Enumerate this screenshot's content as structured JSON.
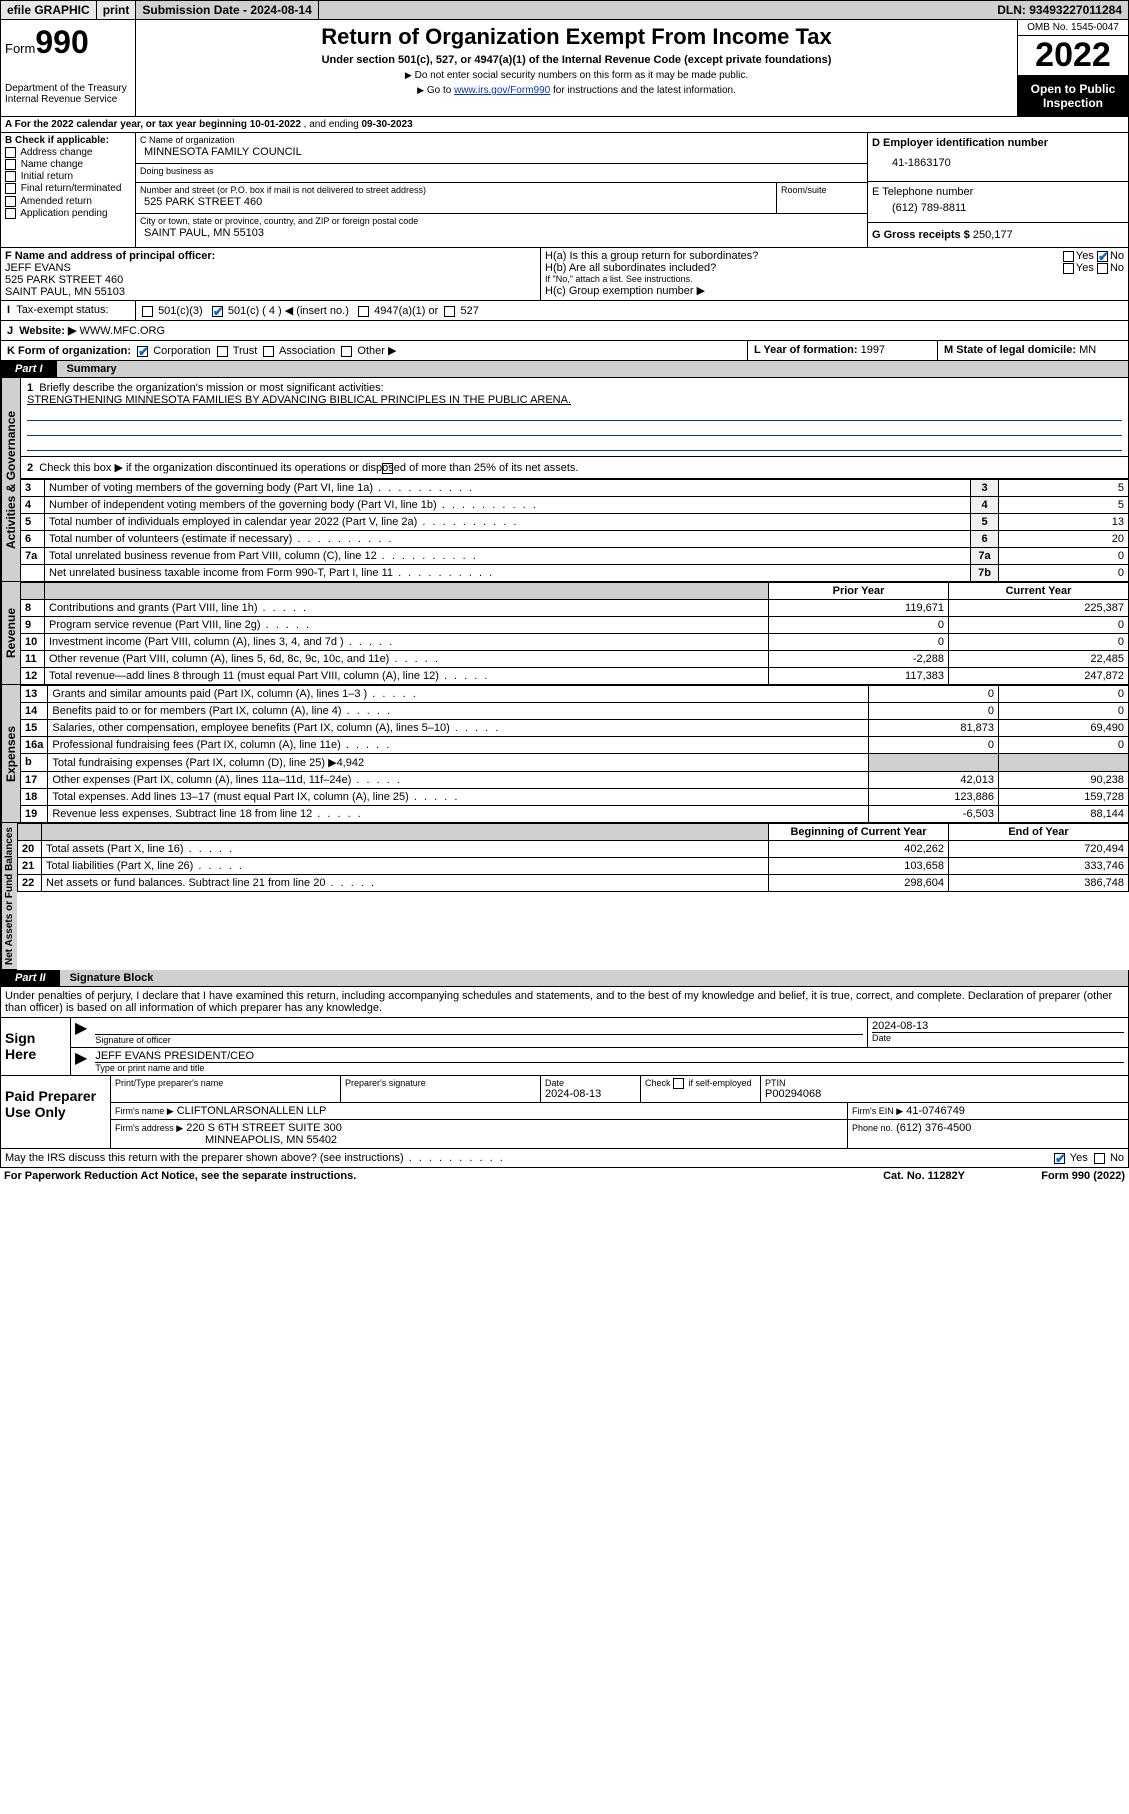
{
  "topbar": {
    "efile": "efile GRAPHIC",
    "print": "print",
    "subdate_label": "Submission Date - ",
    "subdate": "2024-08-14",
    "dln_label": "DLN: ",
    "dln": "93493227011284"
  },
  "header": {
    "form_word": "Form",
    "form_num": "990",
    "dept": "Department of the Treasury",
    "irs": "Internal Revenue Service",
    "title": "Return of Organization Exempt From Income Tax",
    "subtitle": "Under section 501(c), 527, or 4947(a)(1) of the Internal Revenue Code (except private foundations)",
    "note1": "Do not enter social security numbers on this form as it may be made public.",
    "note2_a": "Go to ",
    "note2_link": "www.irs.gov/Form990",
    "note2_b": " for instructions and the latest information.",
    "omb": "OMB No. 1545-0047",
    "year": "2022",
    "open1": "Open to Public",
    "open2": "Inspection"
  },
  "period": {
    "a_label": "A For the 2022 calendar year, or tax year beginning ",
    "begin": "10-01-2022",
    "mid": " , and ending ",
    "end": "09-30-2023"
  },
  "colB": {
    "label": "B Check if applicable:",
    "opts": [
      "Address change",
      "Name change",
      "Initial return",
      "Final return/terminated",
      "Amended return",
      "Application pending"
    ]
  },
  "colC": {
    "name_label": "C Name of organization",
    "name": "MINNESOTA FAMILY COUNCIL",
    "dba_label": "Doing business as",
    "dba": "",
    "addr_label": "Number and street (or P.O. box if mail is not delivered to street address)",
    "room_label": "Room/suite",
    "addr": "525 PARK STREET 460",
    "city_label": "City or town, state or province, country, and ZIP or foreign postal code",
    "city": "SAINT PAUL, MN  55103"
  },
  "colD": {
    "label": "D Employer identification number",
    "val": "41-1863170"
  },
  "colE": {
    "label": "E Telephone number",
    "val": "(612) 789-8811"
  },
  "colG": {
    "label": "G Gross receipts $",
    "val": "250,177"
  },
  "colF": {
    "label": "F Name and address of principal officer:",
    "name": "JEFF EVANS",
    "addr1": "525 PARK STREET 460",
    "addr2": "SAINT PAUL, MN  55103"
  },
  "colH": {
    "ha": "H(a)  Is this a group return for subordinates?",
    "hb": "H(b)  Are all subordinates included?",
    "hb_note": "If \"No,\" attach a list. See instructions.",
    "hc": "H(c)  Group exemption number ▶",
    "yes": "Yes",
    "no": "No"
  },
  "lineI": {
    "label": "Tax-exempt status:",
    "o1": "501(c)(3)",
    "o2": "501(c) ( 4 ) ◀ (insert no.)",
    "o3": "4947(a)(1) or",
    "o4": "527"
  },
  "lineJ": {
    "label": "Website: ▶",
    "val": "WWW.MFC.ORG"
  },
  "lineK": {
    "label": "K Form of organization:",
    "o1": "Corporation",
    "o2": "Trust",
    "o3": "Association",
    "o4": "Other ▶"
  },
  "lineL": {
    "label": "L Year of formation:",
    "val": "1997"
  },
  "lineM": {
    "label": "M State of legal domicile:",
    "val": "MN"
  },
  "part1": {
    "num": "Part I",
    "name": "Summary"
  },
  "vtabs": {
    "ag": "Activities & Governance",
    "rev": "Revenue",
    "exp": "Expenses",
    "na": "Net Assets or\nFund Balances"
  },
  "p1": {
    "l1a": "Briefly describe the organization's mission or most significant activities:",
    "l1b": "STRENGTHENING MINNESOTA FAMILIES BY ADVANCING BIBLICAL PRINCIPLES IN THE PUBLIC ARENA.",
    "l2": "Check this box ▶       if the organization discontinued its operations or disposed of more than 25% of its net assets.",
    "rows_gov": [
      {
        "n": "3",
        "d": "Number of voting members of the governing body (Part VI, line 1a)",
        "b": "3",
        "v": "5"
      },
      {
        "n": "4",
        "d": "Number of independent voting members of the governing body (Part VI, line 1b)",
        "b": "4",
        "v": "5"
      },
      {
        "n": "5",
        "d": "Total number of individuals employed in calendar year 2022 (Part V, line 2a)",
        "b": "5",
        "v": "13"
      },
      {
        "n": "6",
        "d": "Total number of volunteers (estimate if necessary)",
        "b": "6",
        "v": "20"
      },
      {
        "n": "7a",
        "d": "Total unrelated business revenue from Part VIII, column (C), line 12",
        "b": "7a",
        "v": "0"
      },
      {
        "n": "",
        "d": "Net unrelated business taxable income from Form 990-T, Part I, line 11",
        "b": "7b",
        "v": "0"
      }
    ],
    "hdr_prior": "Prior Year",
    "hdr_curr": "Current Year",
    "rows_rev": [
      {
        "n": "8",
        "d": "Contributions and grants (Part VIII, line 1h)",
        "p": "119,671",
        "c": "225,387"
      },
      {
        "n": "9",
        "d": "Program service revenue (Part VIII, line 2g)",
        "p": "0",
        "c": "0"
      },
      {
        "n": "10",
        "d": "Investment income (Part VIII, column (A), lines 3, 4, and 7d )",
        "p": "0",
        "c": "0"
      },
      {
        "n": "11",
        "d": "Other revenue (Part VIII, column (A), lines 5, 6d, 8c, 9c, 10c, and 11e)",
        "p": "-2,288",
        "c": "22,485"
      },
      {
        "n": "12",
        "d": "Total revenue—add lines 8 through 11 (must equal Part VIII, column (A), line 12)",
        "p": "117,383",
        "c": "247,872"
      }
    ],
    "rows_exp": [
      {
        "n": "13",
        "d": "Grants and similar amounts paid (Part IX, column (A), lines 1–3 )",
        "p": "0",
        "c": "0"
      },
      {
        "n": "14",
        "d": "Benefits paid to or for members (Part IX, column (A), line 4)",
        "p": "0",
        "c": "0"
      },
      {
        "n": "15",
        "d": "Salaries, other compensation, employee benefits (Part IX, column (A), lines 5–10)",
        "p": "81,873",
        "c": "69,490"
      },
      {
        "n": "16a",
        "d": "Professional fundraising fees (Part IX, column (A), line 11e)",
        "p": "0",
        "c": "0"
      }
    ],
    "l16b": "Total fundraising expenses (Part IX, column (D), line 25) ▶",
    "l16b_v": "4,942",
    "rows_exp2": [
      {
        "n": "17",
        "d": "Other expenses (Part IX, column (A), lines 11a–11d, 11f–24e)",
        "p": "42,013",
        "c": "90,238"
      },
      {
        "n": "18",
        "d": "Total expenses. Add lines 13–17 (must equal Part IX, column (A), line 25)",
        "p": "123,886",
        "c": "159,728"
      },
      {
        "n": "19",
        "d": "Revenue less expenses. Subtract line 18 from line 12",
        "p": "-6,503",
        "c": "88,144"
      }
    ],
    "hdr_begin": "Beginning of Current Year",
    "hdr_end": "End of Year",
    "rows_na": [
      {
        "n": "20",
        "d": "Total assets (Part X, line 16)",
        "p": "402,262",
        "c": "720,494"
      },
      {
        "n": "21",
        "d": "Total liabilities (Part X, line 26)",
        "p": "103,658",
        "c": "333,746"
      },
      {
        "n": "22",
        "d": "Net assets or fund balances. Subtract line 21 from line 20",
        "p": "298,604",
        "c": "386,748"
      }
    ]
  },
  "part2": {
    "num": "Part II",
    "name": "Signature Block"
  },
  "sig": {
    "declare": "Under penalties of perjury, I declare that I have examined this return, including accompanying schedules and statements, and to the best of my knowledge and belief, it is true, correct, and complete. Declaration of preparer (other than officer) is based on all information of which preparer has any knowledge.",
    "sign_here": "Sign Here",
    "sig_officer": "Signature of officer",
    "date_l": "Date",
    "date_v": "2024-08-13",
    "name_title": "JEFF EVANS  PRESIDENT/CEO",
    "name_title_l": "Type or print name and title",
    "paid": "Paid Preparer Use Only",
    "pp_name_l": "Print/Type preparer's name",
    "pp_sig_l": "Preparer's signature",
    "pp_date_l": "Date",
    "pp_date_v": "2024-08-13",
    "pp_chk_l": "Check         if self-employed",
    "ptin_l": "PTIN",
    "ptin_v": "P00294068",
    "firm_name_l": "Firm's name     ▶",
    "firm_name": "CLIFTONLARSONALLEN LLP",
    "firm_ein_l": "Firm's EIN ▶",
    "firm_ein": "41-0746749",
    "firm_addr_l": "Firm's address ▶",
    "firm_addr1": "220 S 6TH STREET SUITE 300",
    "firm_addr2": "MINNEAPOLIS, MN  55402",
    "phone_l": "Phone no.",
    "phone_v": "(612) 376-4500",
    "discuss": "May the IRS discuss this return with the preparer shown above? (see instructions)",
    "yes": "Yes",
    "no": "No"
  },
  "footer": {
    "pra": "For Paperwork Reduction Act Notice, see the separate instructions.",
    "cat": "Cat. No. 11282Y",
    "form": "Form 990 (2022)"
  }
}
